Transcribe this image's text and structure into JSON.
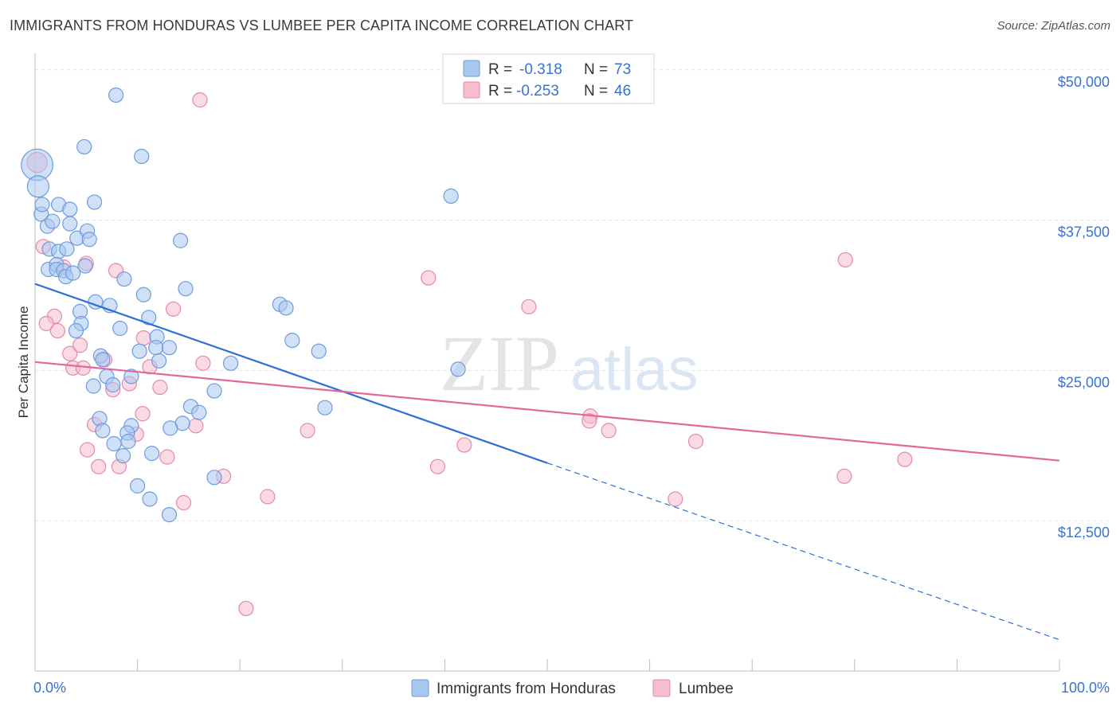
{
  "header": {
    "title": "IMMIGRANTS FROM HONDURAS VS LUMBEE PER CAPITA INCOME CORRELATION CHART",
    "source": "Source: ZipAtlas.com"
  },
  "watermark": {
    "zip": "ZIP",
    "atlas": "atlas"
  },
  "legend": {
    "rows": [
      {
        "r_label": "R =",
        "r_value": "-0.318",
        "n_label": "N =",
        "n_value": "73"
      },
      {
        "r_label": "R =",
        "r_value": "-0.253",
        "n_label": "N =",
        "n_value": "46"
      }
    ]
  },
  "bottom_legend": [
    "Immigrants from Honduras",
    "Lumbee"
  ],
  "colors": {
    "blue_fill": "#a9c8f0",
    "blue_stroke": "#6c9bde",
    "blue_line": "#2b6fd6",
    "pink_fill": "#f6bcd0",
    "pink_stroke": "#e58aa8",
    "pink_line": "#e0699a",
    "grid": "#e3e3e3",
    "axis": "#bdbdbd",
    "tick_label": "#3a72d0"
  },
  "chart_data": {
    "type": "scatter",
    "title": "IMMIGRANTS FROM HONDURAS VS LUMBEE PER CAPITA INCOME CORRELATION CHART",
    "xlabel": "",
    "ylabel": "Per Capita Income",
    "xlim": [
      0,
      100
    ],
    "ylim": [
      0,
      52500
    ],
    "x_tick_labels": [
      "0.0%",
      "100.0%"
    ],
    "y_ticks": [
      {
        "value": 50000,
        "label": "$50,000"
      },
      {
        "value": 37500,
        "label": "$37,500"
      },
      {
        "value": 25000,
        "label": "$25,000"
      },
      {
        "value": 12500,
        "label": "$12,500"
      }
    ],
    "grid": true,
    "legend_position": "top-center",
    "series": [
      {
        "name": "Immigrants from Honduras",
        "color": "#a9c8f0",
        "trend": {
          "x0": 0,
          "y0": 32200,
          "x1": 50,
          "y1": 17300,
          "dashed_to_x": 100,
          "dashed_to_y": 2600
        },
        "points": [
          {
            "x": 0.2,
            "y": 42100,
            "s": 2.2
          },
          {
            "x": 0.3,
            "y": 40300,
            "s": 1.5
          },
          {
            "x": 0.6,
            "y": 38000,
            "s": 1.0
          },
          {
            "x": 0.7,
            "y": 38800,
            "s": 1.0
          },
          {
            "x": 1.2,
            "y": 37000,
            "s": 1.0
          },
          {
            "x": 1.7,
            "y": 37400,
            "s": 1.0
          },
          {
            "x": 2.3,
            "y": 38800,
            "s": 1.0
          },
          {
            "x": 3.4,
            "y": 38400,
            "s": 1.0
          },
          {
            "x": 3.4,
            "y": 37200,
            "s": 1.0
          },
          {
            "x": 4.1,
            "y": 36000,
            "s": 1.0
          },
          {
            "x": 5.1,
            "y": 36600,
            "s": 1.0
          },
          {
            "x": 5.3,
            "y": 35900,
            "s": 1.0
          },
          {
            "x": 1.4,
            "y": 35100,
            "s": 1.0
          },
          {
            "x": 2.3,
            "y": 34900,
            "s": 1.0
          },
          {
            "x": 3.1,
            "y": 35100,
            "s": 1.0
          },
          {
            "x": 1.3,
            "y": 33400,
            "s": 1.0
          },
          {
            "x": 2.1,
            "y": 33800,
            "s": 1.0
          },
          {
            "x": 2.1,
            "y": 33400,
            "s": 1.0
          },
          {
            "x": 2.8,
            "y": 33300,
            "s": 1.0
          },
          {
            "x": 3.0,
            "y": 32800,
            "s": 1.0
          },
          {
            "x": 3.7,
            "y": 33100,
            "s": 1.0
          },
          {
            "x": 4.9,
            "y": 33700,
            "s": 1.0
          },
          {
            "x": 8.7,
            "y": 32600,
            "s": 1.0
          },
          {
            "x": 7.9,
            "y": 47900,
            "s": 1.0
          },
          {
            "x": 4.8,
            "y": 43600,
            "s": 1.0
          },
          {
            "x": 10.4,
            "y": 42800,
            "s": 1.0
          },
          {
            "x": 5.8,
            "y": 39000,
            "s": 1.0
          },
          {
            "x": 14.2,
            "y": 35800,
            "s": 1.0
          },
          {
            "x": 14.7,
            "y": 31800,
            "s": 1.0
          },
          {
            "x": 10.6,
            "y": 31300,
            "s": 1.0
          },
          {
            "x": 5.9,
            "y": 30700,
            "s": 1.0
          },
          {
            "x": 7.3,
            "y": 30400,
            "s": 1.0
          },
          {
            "x": 4.4,
            "y": 29900,
            "s": 1.0
          },
          {
            "x": 4.5,
            "y": 28900,
            "s": 1.0
          },
          {
            "x": 4.0,
            "y": 28300,
            "s": 1.0
          },
          {
            "x": 8.3,
            "y": 28500,
            "s": 1.0
          },
          {
            "x": 11.1,
            "y": 29400,
            "s": 1.0
          },
          {
            "x": 11.9,
            "y": 27800,
            "s": 1.0
          },
          {
            "x": 11.8,
            "y": 26900,
            "s": 1.0
          },
          {
            "x": 10.2,
            "y": 26600,
            "s": 1.0
          },
          {
            "x": 13.1,
            "y": 26900,
            "s": 1.0
          },
          {
            "x": 6.4,
            "y": 26200,
            "s": 1.0
          },
          {
            "x": 6.6,
            "y": 25900,
            "s": 1.0
          },
          {
            "x": 12.1,
            "y": 25800,
            "s": 1.0
          },
          {
            "x": 7.0,
            "y": 24500,
            "s": 1.0
          },
          {
            "x": 9.4,
            "y": 24500,
            "s": 1.0
          },
          {
            "x": 5.7,
            "y": 23700,
            "s": 1.0
          },
          {
            "x": 7.6,
            "y": 23800,
            "s": 1.0
          },
          {
            "x": 19.1,
            "y": 25600,
            "s": 1.0
          },
          {
            "x": 17.5,
            "y": 23300,
            "s": 1.0
          },
          {
            "x": 15.2,
            "y": 22000,
            "s": 1.0
          },
          {
            "x": 16.0,
            "y": 21500,
            "s": 1.0
          },
          {
            "x": 6.3,
            "y": 21000,
            "s": 1.0
          },
          {
            "x": 9.4,
            "y": 20400,
            "s": 1.0
          },
          {
            "x": 14.4,
            "y": 20600,
            "s": 1.0
          },
          {
            "x": 6.6,
            "y": 20000,
            "s": 1.0
          },
          {
            "x": 9.0,
            "y": 19800,
            "s": 1.0
          },
          {
            "x": 13.2,
            "y": 20200,
            "s": 1.0
          },
          {
            "x": 7.7,
            "y": 18900,
            "s": 1.0
          },
          {
            "x": 9.1,
            "y": 19100,
            "s": 1.0
          },
          {
            "x": 8.6,
            "y": 17900,
            "s": 1.0
          },
          {
            "x": 11.4,
            "y": 18100,
            "s": 1.0
          },
          {
            "x": 17.5,
            "y": 16100,
            "s": 1.0
          },
          {
            "x": 10.0,
            "y": 15400,
            "s": 1.0
          },
          {
            "x": 11.2,
            "y": 14300,
            "s": 1.0
          },
          {
            "x": 13.1,
            "y": 13000,
            "s": 1.0
          },
          {
            "x": 23.9,
            "y": 30500,
            "s": 1.0
          },
          {
            "x": 24.5,
            "y": 30200,
            "s": 1.0
          },
          {
            "x": 25.1,
            "y": 27500,
            "s": 1.0
          },
          {
            "x": 27.7,
            "y": 26600,
            "s": 1.0
          },
          {
            "x": 28.3,
            "y": 21900,
            "s": 1.0
          },
          {
            "x": 40.6,
            "y": 39500,
            "s": 1.0
          },
          {
            "x": 41.3,
            "y": 25100,
            "s": 1.0
          }
        ]
      },
      {
        "name": "Lumbee",
        "color": "#f6bcd0",
        "trend": {
          "x0": 0,
          "y0": 25700,
          "x1": 100,
          "y1": 17500
        },
        "points": [
          {
            "x": 0.2,
            "y": 42300,
            "s": 1.4
          },
          {
            "x": 0.8,
            "y": 35300,
            "s": 1.0
          },
          {
            "x": 2.8,
            "y": 33600,
            "s": 1.0
          },
          {
            "x": 7.9,
            "y": 33300,
            "s": 1.0
          },
          {
            "x": 1.9,
            "y": 29500,
            "s": 1.0
          },
          {
            "x": 1.1,
            "y": 28900,
            "s": 1.0
          },
          {
            "x": 2.2,
            "y": 28300,
            "s": 1.0
          },
          {
            "x": 3.4,
            "y": 26400,
            "s": 1.0
          },
          {
            "x": 4.4,
            "y": 27100,
            "s": 1.0
          },
          {
            "x": 6.8,
            "y": 25900,
            "s": 1.0
          },
          {
            "x": 3.7,
            "y": 25200,
            "s": 1.0
          },
          {
            "x": 4.7,
            "y": 25200,
            "s": 1.0
          },
          {
            "x": 9.2,
            "y": 23900,
            "s": 1.0
          },
          {
            "x": 7.6,
            "y": 23400,
            "s": 1.0
          },
          {
            "x": 10.6,
            "y": 27700,
            "s": 1.0
          },
          {
            "x": 13.5,
            "y": 30100,
            "s": 1.0
          },
          {
            "x": 11.2,
            "y": 25300,
            "s": 1.0
          },
          {
            "x": 12.2,
            "y": 23600,
            "s": 1.0
          },
          {
            "x": 16.4,
            "y": 25600,
            "s": 1.0
          },
          {
            "x": 10.5,
            "y": 21400,
            "s": 1.0
          },
          {
            "x": 5.8,
            "y": 20500,
            "s": 1.0
          },
          {
            "x": 9.9,
            "y": 19700,
            "s": 1.0
          },
          {
            "x": 15.7,
            "y": 20400,
            "s": 1.0
          },
          {
            "x": 5.1,
            "y": 18400,
            "s": 1.0
          },
          {
            "x": 6.2,
            "y": 17000,
            "s": 1.0
          },
          {
            "x": 8.2,
            "y": 17000,
            "s": 1.0
          },
          {
            "x": 12.9,
            "y": 17800,
            "s": 1.0
          },
          {
            "x": 18.4,
            "y": 16200,
            "s": 1.0
          },
          {
            "x": 14.5,
            "y": 14000,
            "s": 1.0
          },
          {
            "x": 16.1,
            "y": 47500,
            "s": 1.0
          },
          {
            "x": 22.7,
            "y": 14500,
            "s": 1.0
          },
          {
            "x": 20.6,
            "y": 5200,
            "s": 1.0
          },
          {
            "x": 26.6,
            "y": 20000,
            "s": 1.0
          },
          {
            "x": 38.4,
            "y": 32700,
            "s": 1.0
          },
          {
            "x": 39.3,
            "y": 17000,
            "s": 1.0
          },
          {
            "x": 41.9,
            "y": 18800,
            "s": 1.0
          },
          {
            "x": 48.2,
            "y": 30300,
            "s": 1.0
          },
          {
            "x": 54.2,
            "y": 21200,
            "s": 1.0
          },
          {
            "x": 54.1,
            "y": 20800,
            "s": 1.0
          },
          {
            "x": 56.0,
            "y": 20000,
            "s": 1.0
          },
          {
            "x": 62.5,
            "y": 14300,
            "s": 1.0
          },
          {
            "x": 64.5,
            "y": 19100,
            "s": 1.0
          },
          {
            "x": 79.1,
            "y": 34200,
            "s": 1.0
          },
          {
            "x": 79.0,
            "y": 16200,
            "s": 1.0
          },
          {
            "x": 84.9,
            "y": 17600,
            "s": 1.0
          },
          {
            "x": 5.0,
            "y": 33900,
            "s": 1.0
          }
        ]
      }
    ]
  }
}
